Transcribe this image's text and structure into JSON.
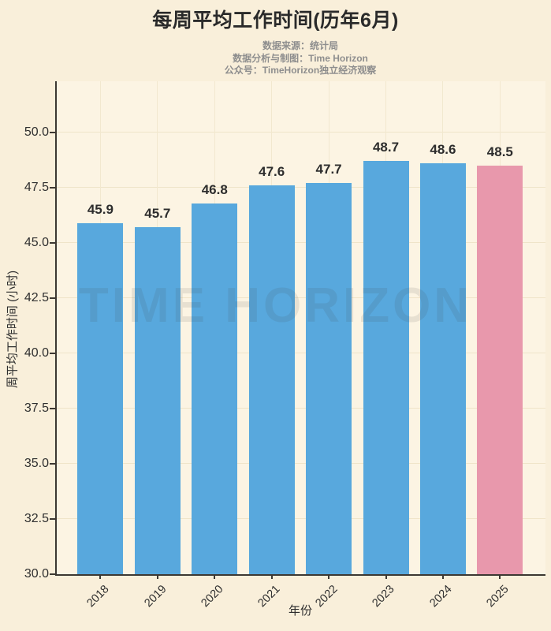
{
  "title": "每周平均工作时间(历年6月)",
  "subtitle_lines": [
    "数据来源：统计局",
    "数据分析与制图：Time Horizon",
    "公众号：TimeHorizon独立经济观察"
  ],
  "watermark": "TIME HORIZON",
  "colors": {
    "figure_background": "#f9efda",
    "plot_background": "#fcf4e3",
    "bar_blue": "#58a8dd",
    "bar_pink": "#e898ac",
    "spine": "#3c3832",
    "grid": "#efe4c9",
    "title_text": "#2a2a2a",
    "subtitle_text": "#8e8e8e",
    "tick_text": "#2f2f2f"
  },
  "chart_data": {
    "type": "bar",
    "title": "每周平均工作时间(历年6月)",
    "categories": [
      "2018",
      "2019",
      "2020",
      "2021",
      "2022",
      "2023",
      "2024",
      "2025"
    ],
    "values": [
      45.9,
      45.7,
      46.8,
      47.6,
      47.7,
      48.7,
      48.6,
      48.5
    ],
    "bar_colors": [
      "#58a8dd",
      "#58a8dd",
      "#58a8dd",
      "#58a8dd",
      "#58a8dd",
      "#58a8dd",
      "#58a8dd",
      "#e898ac"
    ],
    "value_labels": [
      "45.9",
      "45.7",
      "46.8",
      "47.6",
      "47.7",
      "48.7",
      "48.6",
      "48.5"
    ],
    "xlabel": "年份",
    "ylabel": "周平均工作时间 (小时)",
    "ylim": [
      30.0,
      52.32
    ],
    "yticks": [
      30.0,
      32.5,
      35.0,
      37.5,
      40.0,
      42.5,
      45.0,
      47.5,
      50.0
    ],
    "ytick_labels": [
      "30.0",
      "32.5",
      "35.0",
      "37.5",
      "40.0",
      "42.5",
      "45.0",
      "47.5",
      "50.0"
    ],
    "grid": true,
    "legend": "none",
    "x_tick_rotation_deg": 45,
    "highlighted_category": "2025"
  }
}
